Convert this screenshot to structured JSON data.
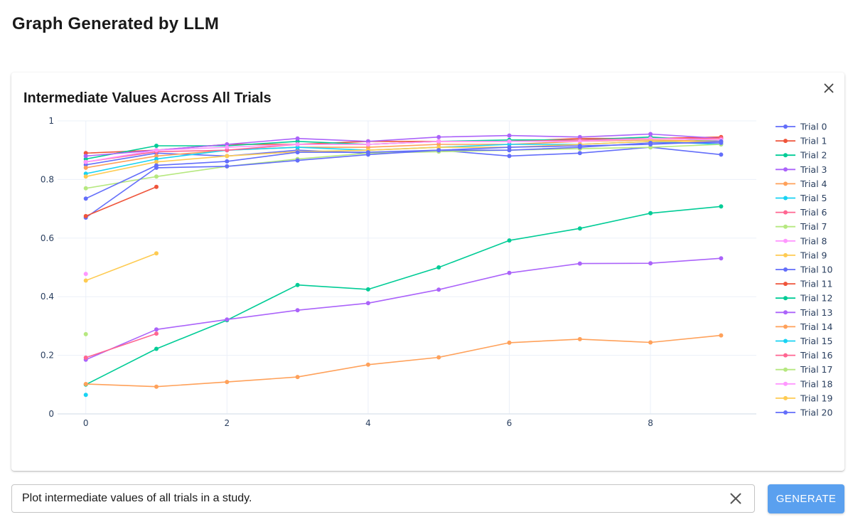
{
  "page": {
    "title": "Graph Generated by LLM"
  },
  "prompt": {
    "value": "Plot intermediate values of all trials in a study.",
    "placeholder": ""
  },
  "buttons": {
    "generate_label": "GENERATE"
  },
  "icons": {
    "close": "close-icon",
    "clear": "clear-icon"
  },
  "colors": {
    "generate_button": "#5aa0ef",
    "tick_text": "#2a3f5f",
    "grid": "#ebf0f8"
  },
  "chart_data": {
    "type": "line",
    "title": "Intermediate Values Across All Trials",
    "xlabel": "",
    "ylabel": "",
    "xlim": [
      -0.4,
      9.5
    ],
    "ylim": [
      0,
      1
    ],
    "xticks": [
      0,
      2,
      4,
      6,
      8
    ],
    "yticks": [
      0,
      0.2,
      0.4,
      0.6,
      0.8,
      1
    ],
    "ytick_labels": [
      "0",
      "0.2",
      "0.4",
      "0.6",
      "0.8",
      "1"
    ],
    "grid": true,
    "legend_position": "right",
    "markers": true,
    "series": [
      {
        "name": "Trial 0",
        "color": "#636efa",
        "x": [
          0,
          1,
          2,
          3,
          4,
          5,
          6,
          7,
          8,
          9
        ],
        "y": [
          0.85,
          0.89,
          0.88,
          0.9,
          0.89,
          0.9,
          0.88,
          0.89,
          0.91,
          0.885
        ]
      },
      {
        "name": "Trial 1",
        "color": "#ef553b",
        "x": [
          0,
          1,
          2,
          3,
          4,
          5,
          6,
          7,
          8,
          9
        ],
        "y": [
          0.89,
          0.9,
          0.92,
          0.92,
          0.93,
          0.93,
          0.93,
          0.94,
          0.94,
          0.945
        ]
      },
      {
        "name": "Trial 2",
        "color": "#00cc96",
        "x": [
          0,
          1,
          2,
          3,
          4,
          5,
          6,
          7,
          8,
          9
        ],
        "y": [
          0.87,
          0.915,
          0.915,
          0.93,
          0.92,
          0.93,
          0.935,
          0.935,
          0.945,
          0.93
        ]
      },
      {
        "name": "Trial 3",
        "color": "#ab63fa",
        "x": [
          0,
          1,
          2,
          3,
          4,
          5,
          6,
          7,
          8,
          9
        ],
        "y": [
          0.88,
          0.9,
          0.92,
          0.94,
          0.93,
          0.945,
          0.95,
          0.945,
          0.955,
          0.94
        ]
      },
      {
        "name": "Trial 4",
        "color": "#ffa15a",
        "x": [
          0,
          1,
          2,
          3,
          4,
          5,
          6,
          7,
          8,
          9
        ],
        "y": [
          0.84,
          0.88,
          0.9,
          0.91,
          0.91,
          0.92,
          0.92,
          0.93,
          0.935,
          0.93
        ]
      },
      {
        "name": "Trial 5",
        "color": "#19d3f3",
        "x": [
          0,
          1,
          2,
          3,
          4,
          5,
          6,
          7,
          8,
          9
        ],
        "y": [
          0.82,
          0.87,
          0.9,
          0.91,
          0.9,
          0.91,
          0.92,
          0.92,
          0.93,
          0.92
        ]
      },
      {
        "name": "Trial 6",
        "color": "#ff6692",
        "x": [
          0,
          1,
          2,
          3,
          4,
          5,
          6,
          7,
          8,
          9
        ],
        "y": [
          0.86,
          0.895,
          0.9,
          0.92,
          0.92,
          0.93,
          0.93,
          0.935,
          0.94,
          0.94
        ]
      },
      {
        "name": "Trial 7",
        "color": "#b6e880",
        "x": [
          0,
          1,
          2,
          3,
          4,
          5,
          6,
          7,
          8,
          9
        ],
        "y": [
          0.77,
          0.81,
          0.845,
          0.87,
          0.89,
          0.895,
          0.9,
          0.905,
          0.91,
          0.92
        ]
      },
      {
        "name": "Trial 8",
        "color": "#ff97ff",
        "x": [
          0,
          1,
          2,
          3,
          4,
          5,
          6,
          7,
          8,
          9
        ],
        "y": [
          0.86,
          0.9,
          0.91,
          0.92,
          0.92,
          0.93,
          0.93,
          0.93,
          0.94,
          0.935
        ]
      },
      {
        "name": "Trial 9",
        "color": "#fecb52",
        "x": [
          0,
          1,
          2,
          3,
          4,
          5,
          6,
          7,
          8,
          9
        ],
        "y": [
          0.81,
          0.86,
          0.88,
          0.895,
          0.9,
          0.91,
          0.91,
          0.92,
          0.93,
          0.93
        ]
      },
      {
        "name": "Trial 10",
        "color": "#636efa",
        "x": [
          0,
          1,
          2,
          3,
          4,
          5,
          6,
          7,
          8,
          9
        ],
        "y": [
          0.67,
          0.84,
          0.845,
          0.865,
          0.885,
          0.9,
          0.91,
          0.915,
          0.92,
          0.93
        ]
      },
      {
        "name": "Trial 11",
        "color": "#ef553b",
        "x": [
          0,
          1
        ],
        "y": [
          0.675,
          0.775
        ]
      },
      {
        "name": "Trial 12",
        "color": "#00cc96",
        "x": [
          0,
          1,
          2,
          3,
          4,
          5,
          6,
          7,
          8,
          9
        ],
        "y": [
          0.1,
          0.222,
          0.32,
          0.44,
          0.425,
          0.5,
          0.592,
          0.633,
          0.685,
          0.708
        ]
      },
      {
        "name": "Trial 13",
        "color": "#ab63fa",
        "x": [
          0,
          1,
          2,
          3,
          4,
          5,
          6,
          7,
          8,
          9
        ],
        "y": [
          0.185,
          0.288,
          0.322,
          0.354,
          0.378,
          0.424,
          0.481,
          0.513,
          0.514,
          0.531
        ]
      },
      {
        "name": "Trial 14",
        "color": "#ffa15a",
        "x": [
          0,
          1,
          2,
          3,
          4,
          5,
          6,
          7,
          8,
          9
        ],
        "y": [
          0.102,
          0.093,
          0.109,
          0.126,
          0.168,
          0.193,
          0.243,
          0.255,
          0.244,
          0.268
        ]
      },
      {
        "name": "Trial 15",
        "color": "#19d3f3",
        "x": [
          0
        ],
        "y": [
          0.065
        ]
      },
      {
        "name": "Trial 16",
        "color": "#ff6692",
        "x": [
          0,
          1
        ],
        "y": [
          0.192,
          0.274
        ]
      },
      {
        "name": "Trial 17",
        "color": "#b6e880",
        "x": [
          0
        ],
        "y": [
          0.272
        ]
      },
      {
        "name": "Trial 18",
        "color": "#ff97ff",
        "x": [
          0
        ],
        "y": [
          0.478
        ]
      },
      {
        "name": "Trial 19",
        "color": "#fecb52",
        "x": [
          0,
          1
        ],
        "y": [
          0.455,
          0.548
        ]
      },
      {
        "name": "Trial 20",
        "color": "#636efa",
        "x": [
          0,
          1,
          2,
          3,
          4,
          5,
          6,
          7,
          8,
          9
        ],
        "y": [
          0.735,
          0.848,
          0.862,
          0.893,
          0.893,
          0.9,
          0.9,
          0.91,
          0.925,
          0.925
        ]
      }
    ]
  }
}
